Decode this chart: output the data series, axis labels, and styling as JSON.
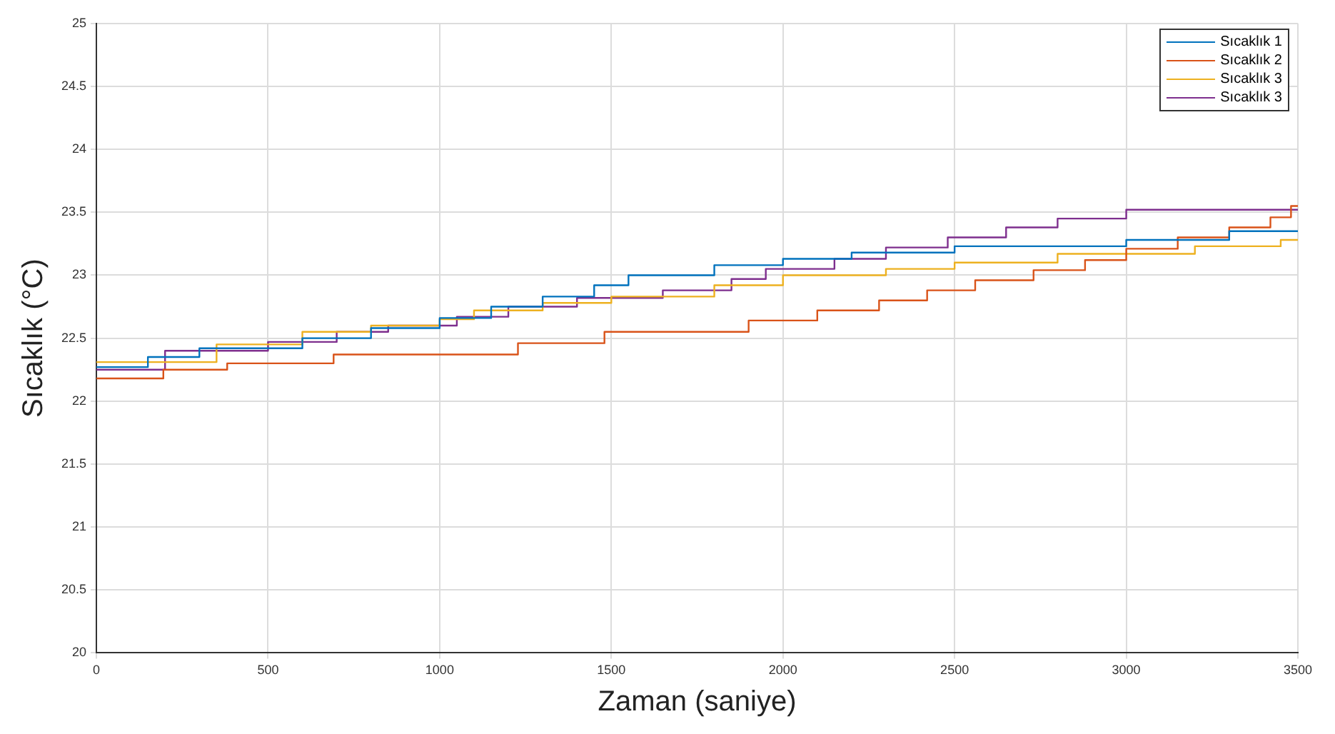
{
  "chart_data": {
    "type": "step",
    "xlabel": "Zaman (saniye)",
    "ylabel": "Sıcaklık (°C)",
    "xlim": [
      0,
      3500
    ],
    "xticks": [
      0,
      500,
      1000,
      1500,
      2000,
      2500,
      3000,
      3500
    ],
    "ylim": [
      20,
      25
    ],
    "yticks": [
      20,
      20.5,
      21,
      21.5,
      22,
      22.5,
      23,
      23.5,
      24,
      24.5,
      25
    ],
    "grid": true,
    "legend": "top right",
    "line_style": "solid",
    "marker": "none",
    "series": [
      {
        "name": "Sıcaklık 1",
        "color": "#0072bd",
        "x": [
          0,
          150,
          300,
          600,
          800,
          1000,
          1150,
          1300,
          1450,
          1550,
          1800,
          2000,
          2200,
          2500,
          3000,
          3300,
          3500
        ],
        "values": [
          22.27,
          22.35,
          22.42,
          22.5,
          22.58,
          22.66,
          22.75,
          22.83,
          22.92,
          23.0,
          23.08,
          23.13,
          23.18,
          23.23,
          23.28,
          23.35,
          23.35
        ]
      },
      {
        "name": "Sıcaklık 2",
        "color": "#d95319",
        "x": [
          0,
          195,
          381,
          691,
          1228,
          1480,
          1900,
          2100,
          2280,
          2420,
          2560,
          2730,
          2880,
          3000,
          3150,
          3300,
          3420,
          3480,
          3500
        ],
        "values": [
          22.18,
          22.25,
          22.3,
          22.37,
          22.46,
          22.55,
          22.64,
          22.72,
          22.8,
          22.88,
          22.96,
          23.04,
          23.12,
          23.21,
          23.3,
          23.38,
          23.46,
          23.55,
          23.55
        ]
      },
      {
        "name": "Sıcaklık 3",
        "color": "#edb120",
        "x": [
          0,
          350,
          600,
          800,
          1000,
          1100,
          1300,
          1500,
          1800,
          2000,
          2300,
          2500,
          2800,
          3200,
          3450,
          3500
        ],
        "values": [
          22.31,
          22.45,
          22.55,
          22.6,
          22.65,
          22.72,
          22.78,
          22.83,
          22.92,
          23.0,
          23.05,
          23.1,
          23.17,
          23.23,
          23.28,
          23.28
        ]
      },
      {
        "name": "Sıcaklık 3",
        "color": "#7e2f8e",
        "x": [
          0,
          200,
          500,
          700,
          850,
          1050,
          1200,
          1400,
          1650,
          1850,
          1950,
          2150,
          2300,
          2480,
          2650,
          2800,
          3000,
          3500
        ],
        "values": [
          22.25,
          22.4,
          22.47,
          22.55,
          22.6,
          22.67,
          22.75,
          22.82,
          22.88,
          22.97,
          23.05,
          23.13,
          23.22,
          23.3,
          23.38,
          23.45,
          23.52,
          23.52
        ]
      }
    ]
  }
}
